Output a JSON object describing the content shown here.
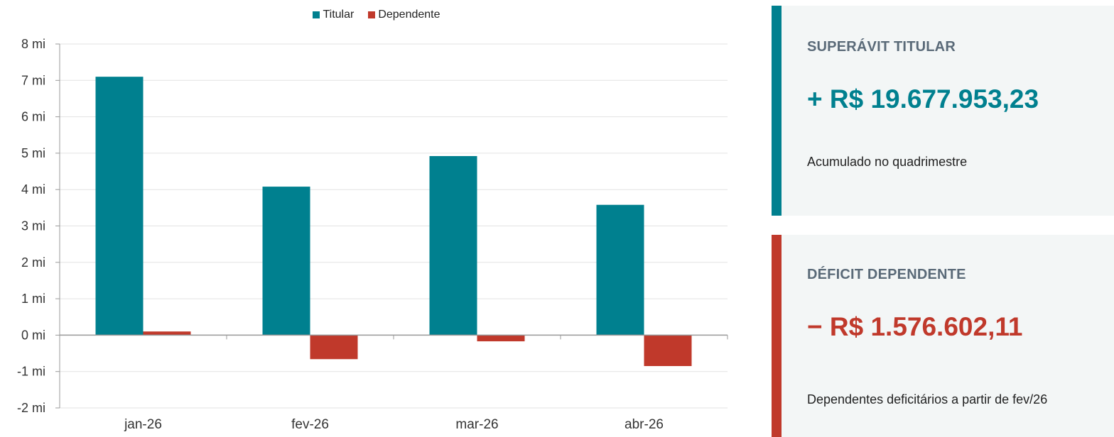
{
  "chart_data": {
    "type": "bar",
    "categories": [
      "jan-26",
      "fev-26",
      "mar-26",
      "abr-26"
    ],
    "series": [
      {
        "name": "Titular",
        "values": [
          7.1,
          4.08,
          4.92,
          3.58
        ],
        "color": "#00808f"
      },
      {
        "name": "Dependente",
        "values": [
          0.1,
          -0.66,
          -0.17,
          -0.85
        ],
        "color": "#c0392b"
      }
    ],
    "ylim": [
      -2,
      8
    ],
    "y_ticks": [
      -2,
      -1,
      0,
      1,
      2,
      3,
      4,
      5,
      6,
      7,
      8
    ],
    "y_tick_suffix": " mi",
    "grid": true,
    "legend_position": "top-center"
  },
  "cards": [
    {
      "label": "SUPERÁVIT TITULAR",
      "value": "+ R$ 19.677.953,23",
      "description": "Acumulado no quadrimestre",
      "accent": "#00808f"
    },
    {
      "label": "DÉFICIT DEPENDENTE",
      "value": "− R$ 1.576.602,11",
      "description": "Dependentes deficitários a partir de fev/26",
      "accent": "#c0392b"
    }
  ]
}
